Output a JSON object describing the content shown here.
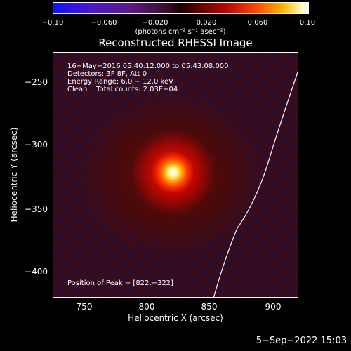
{
  "colorbar": {
    "ticks": [
      "−0.10",
      "−0.060",
      "−0.020",
      "0.020",
      "0.060",
      "0.10"
    ],
    "unit": "(photons cm⁻² s⁻¹ asec⁻²)"
  },
  "title": "Reconstructed RHESSI Image",
  "info": {
    "line1": "16−May−2016 05:40:12.000 to 05:43:08.000",
    "line2": "Detectors: 3F 8F, Att 0",
    "line3": "Energy Range: 6.0 − 12.0 keV",
    "line4": "Clean    Total counts: 2.03E+04",
    "peak": "Position of Peak = [822,−322]"
  },
  "axes": {
    "x_label": "Heliocentric X (arcsec)",
    "y_label": "Heliocentric Y (arcsec)",
    "x_ticks": [
      "750",
      "800",
      "850",
      "900"
    ],
    "y_ticks": [
      "−250",
      "−300",
      "−350",
      "−400"
    ]
  },
  "timestamp": "5−Sep−2022 15:03"
}
